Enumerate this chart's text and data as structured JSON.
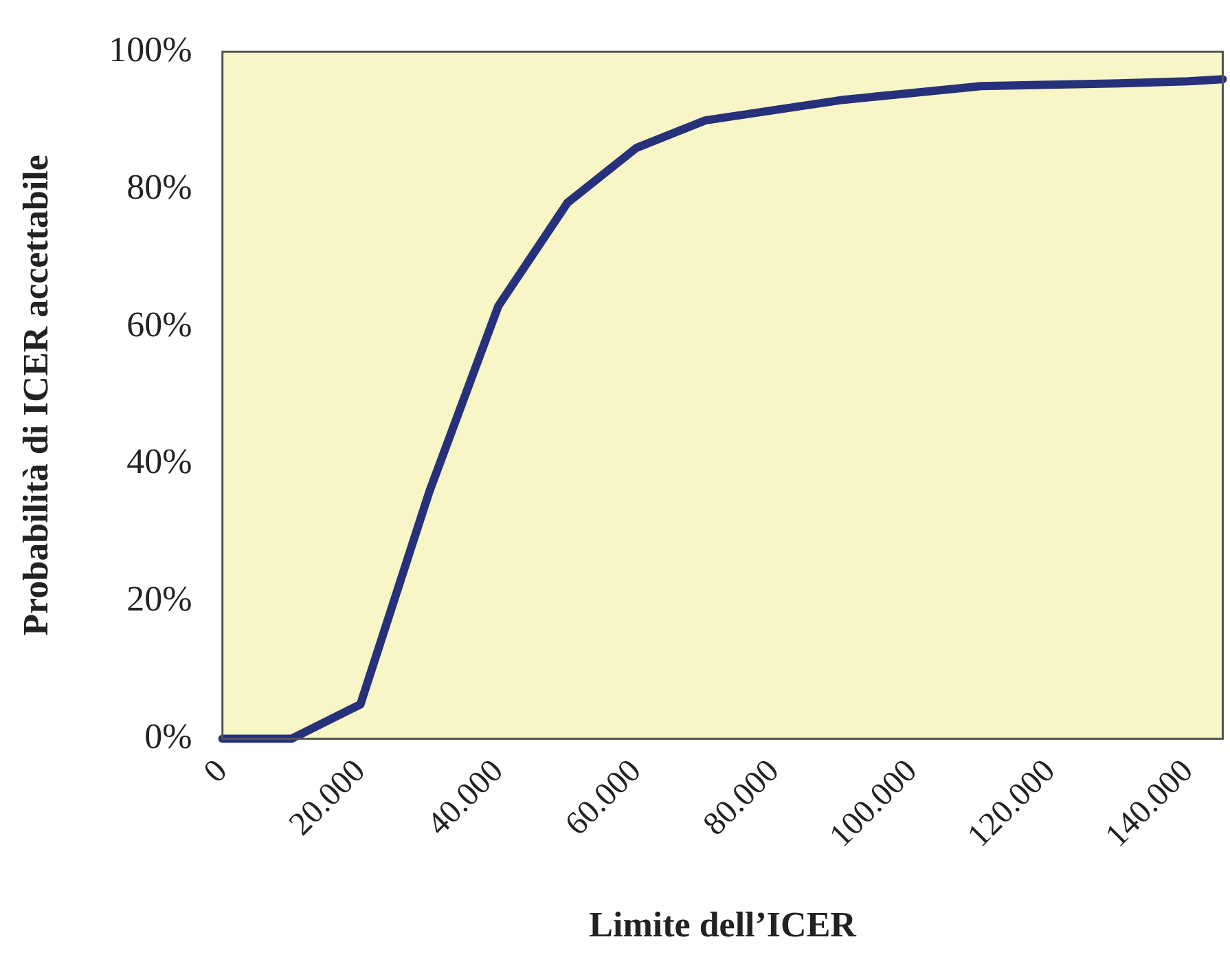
{
  "chart_data": {
    "type": "line",
    "xlabel": "Limite dell’ICER",
    "ylabel": "Probabilità di ICER accettabile",
    "x": [
      0,
      10000,
      20000,
      30000,
      40000,
      50000,
      60000,
      70000,
      80000,
      90000,
      100000,
      110000,
      120000,
      130000,
      140000,
      145000
    ],
    "series": [
      {
        "color": "#27307a",
        "values": [
          0,
          0,
          5,
          36,
          63,
          78,
          86,
          90,
          91.5,
          93,
          94,
          95,
          95.2,
          95.4,
          95.7,
          96
        ]
      }
    ],
    "xlim": [
      0,
      145000
    ],
    "xticks": [
      0,
      {
        "value": 20000,
        "label": "20.000"
      },
      {
        "value": 40000,
        "label": "40.000"
      },
      {
        "value": 60000,
        "label": "60.000"
      },
      {
        "value": 80000,
        "label": "80.000"
      },
      {
        "value": 100000,
        "label": "100.000"
      },
      {
        "value": 120000,
        "label": "120.000"
      },
      {
        "value": 140000,
        "label": "140.000"
      }
    ],
    "ylim": [
      0,
      100
    ],
    "yticks": [
      {
        "value": 0,
        "label": "0%"
      },
      {
        "value": 20,
        "label": "20%"
      },
      {
        "value": 40,
        "label": "40%"
      },
      {
        "value": 60,
        "label": "60%"
      },
      {
        "value": 80,
        "label": "80%"
      },
      {
        "value": 100,
        "label": "100%"
      }
    ],
    "grid": false,
    "legend": false
  }
}
